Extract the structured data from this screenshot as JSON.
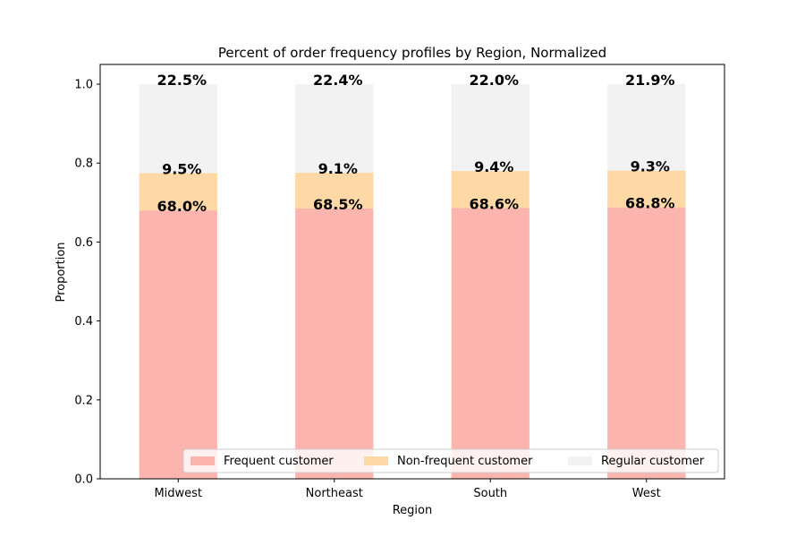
{
  "chart_data": {
    "type": "bar",
    "stacked": true,
    "title": "Percent of order frequency profiles by Region, Normalized",
    "xlabel": "Region",
    "ylabel": "Proportion",
    "ylim": [
      0,
      1.05
    ],
    "yticks": [
      0.0,
      0.2,
      0.4,
      0.6,
      0.8,
      1.0
    ],
    "ytick_labels": [
      "0.0",
      "0.2",
      "0.4",
      "0.6",
      "0.8",
      "1.0"
    ],
    "categories": [
      "Midwest",
      "Northeast",
      "South",
      "West"
    ],
    "series": [
      {
        "name": "Frequent customer",
        "color": "#fbb4ae",
        "values": [
          0.68,
          0.685,
          0.686,
          0.688
        ],
        "labels": [
          "68.0%",
          "68.5%",
          "68.6%",
          "68.8%"
        ]
      },
      {
        "name": "Non-frequent customer",
        "color": "#fed9a6",
        "values": [
          0.095,
          0.091,
          0.094,
          0.093
        ],
        "labels": [
          "9.5%",
          "9.1%",
          "9.4%",
          "9.3%"
        ]
      },
      {
        "name": "Regular customer",
        "color": "#f2f2f2",
        "values": [
          0.225,
          0.224,
          0.22,
          0.219
        ],
        "labels": [
          "22.5%",
          "22.4%",
          "22.0%",
          "21.9%"
        ]
      }
    ],
    "legend": {
      "placement": "lower-right",
      "columns": 3
    },
    "grid": false
  }
}
